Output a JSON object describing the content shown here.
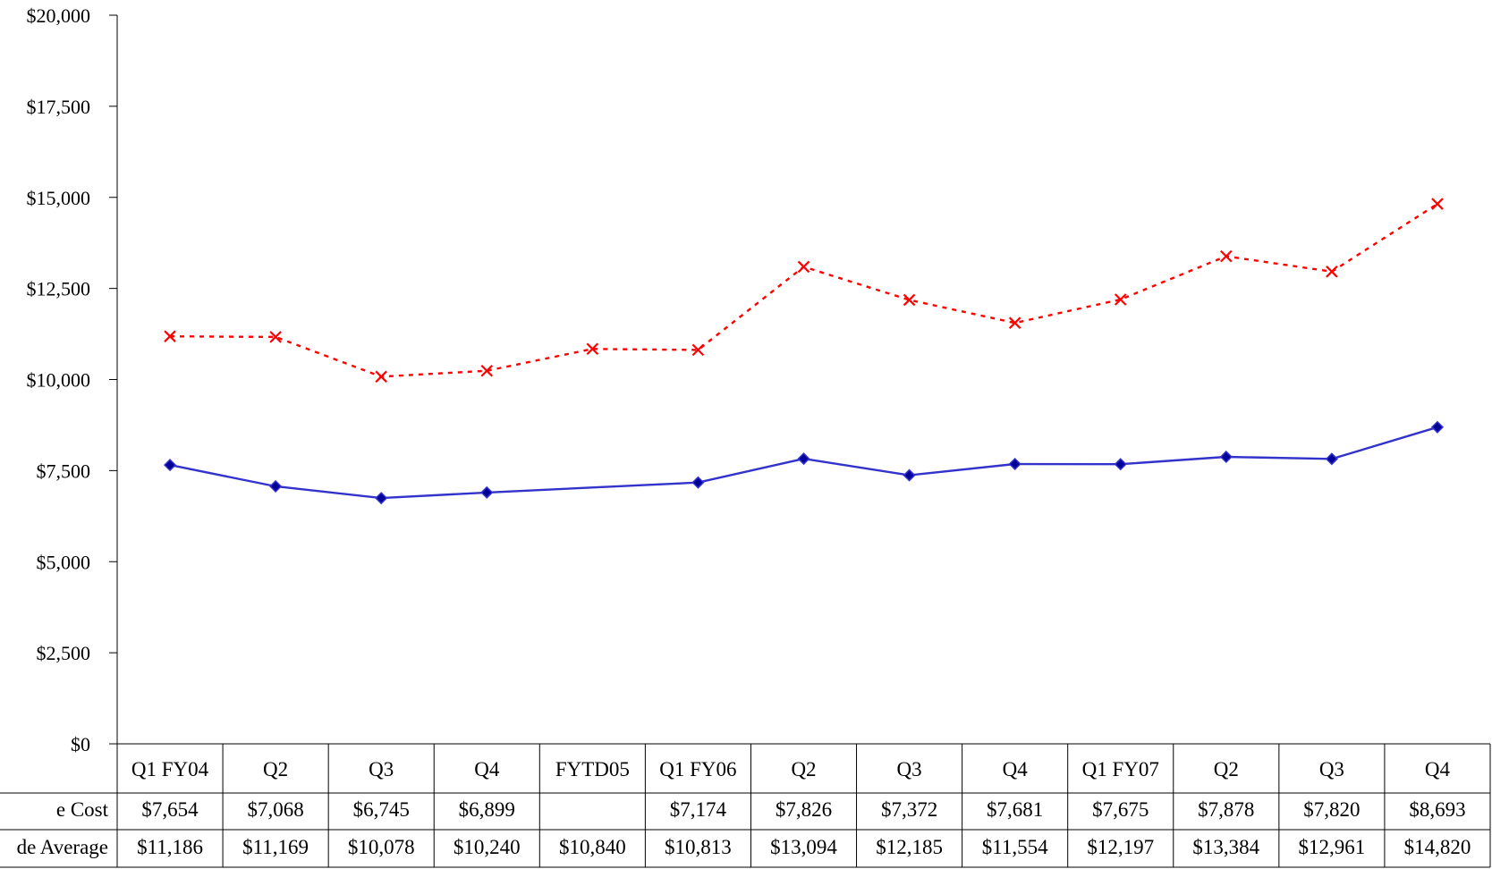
{
  "chart_data": {
    "type": "line",
    "categories": [
      "Q1 FY04",
      "Q2",
      "Q3",
      "Q4",
      "FYTD05",
      "Q1 FY06",
      "Q2",
      "Q3",
      "Q4",
      "Q1 FY07",
      "Q2",
      "Q3",
      "Q4"
    ],
    "y_ticks": [
      "$0",
      "$2,500",
      "$5,000",
      "$7,500",
      "$10,000",
      "$12,500",
      "$15,000",
      "$17,500",
      "$20,000"
    ],
    "ylim": [
      0,
      20000
    ],
    "grid": false,
    "series": [
      {
        "name": "e Cost",
        "color": "#3333cc",
        "marker_color": "#000099",
        "marker": "diamond",
        "line_style": "solid",
        "values": [
          7654,
          7068,
          6745,
          6899,
          null,
          7174,
          7826,
          7372,
          7681,
          7675,
          7878,
          7820,
          8693
        ],
        "labels": [
          "$7,654",
          "$7,068",
          "$6,745",
          "$6,899",
          "",
          "$7,174",
          "$7,826",
          "$7,372",
          "$7,681",
          "$7,675",
          "$7,878",
          "$7,820",
          "$8,693"
        ]
      },
      {
        "name": "de Average",
        "color": "#ff0000",
        "marker_color": "#ff0000",
        "marker": "x",
        "line_style": "dashed",
        "values": [
          11186,
          11169,
          10078,
          10240,
          10840,
          10813,
          13094,
          12185,
          11554,
          12197,
          13384,
          12961,
          14820
        ],
        "labels": [
          "$11,186",
          "$11,169",
          "$10,078",
          "$10,240",
          "$10,840",
          "$10,813",
          "$13,094",
          "$12,185",
          "$11,554",
          "$12,197",
          "$13,384",
          "$12,961",
          "$14,820"
        ]
      }
    ]
  }
}
